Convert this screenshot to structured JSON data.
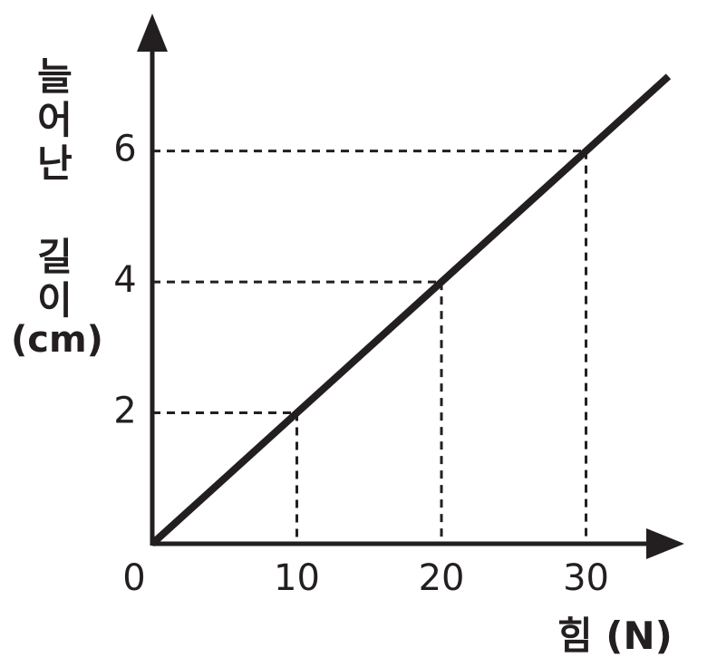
{
  "chart_data": {
    "type": "line",
    "xlabel": "힘 (N)",
    "ylabel": "늘어난 길이",
    "ylabel_unit": "(cm)",
    "x": [
      0,
      10,
      20,
      30,
      35.7
    ],
    "series": [
      {
        "color": "#231f20",
        "values": [
          0,
          2,
          4,
          6,
          7.14
        ]
      }
    ],
    "xlim": [
      0,
      36.8
    ],
    "ylim": [
      0,
      8.1
    ],
    "xticks": [
      0,
      10,
      20,
      30
    ],
    "yticks": [
      2,
      4,
      6
    ],
    "guides": true
  }
}
